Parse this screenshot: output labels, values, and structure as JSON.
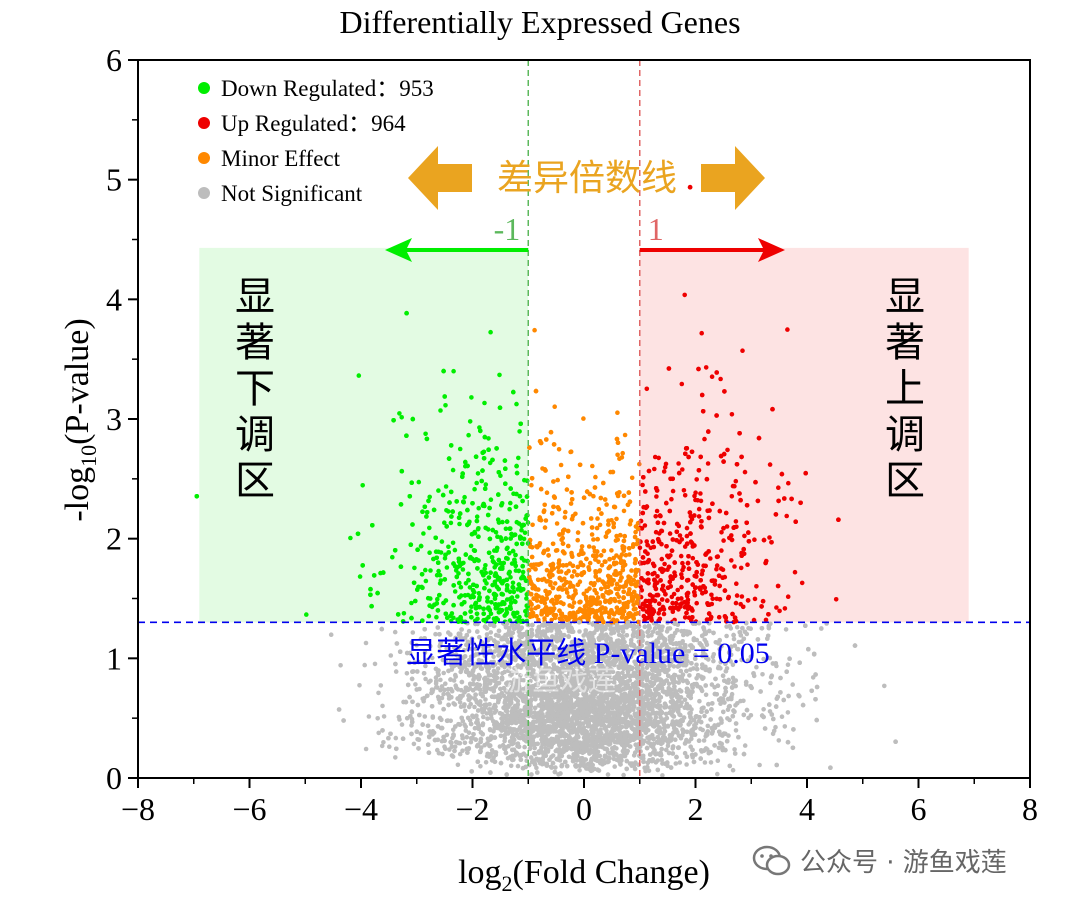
{
  "chart_data": {
    "type": "scatter",
    "title": "Differentially Expressed Genes",
    "xlabel": {
      "pre": "log",
      "sub": "2",
      "post": "(Fold Change)"
    },
    "ylabel": {
      "pre": "-log",
      "sub": "10",
      "post": "(P-value)"
    },
    "xlim": [
      -8,
      8
    ],
    "ylim": [
      0,
      6
    ],
    "xticks": [
      -8,
      -6,
      -4,
      -2,
      0,
      2,
      4,
      6,
      8
    ],
    "yticks": [
      0,
      1,
      2,
      3,
      4,
      5,
      6
    ],
    "grid": false,
    "legend_position": "top-left",
    "fold_change_thresholds": [
      -1,
      1
    ],
    "fold_change_labels": [
      "-1",
      "1"
    ],
    "significance_threshold_y": 1.301,
    "significance_line_label": "显著性水平线 P-value = 0.05",
    "fold_change_line_label": "差异倍数线",
    "region_labels": {
      "down": "显著下调区",
      "up": "显著上调区"
    },
    "series": [
      {
        "name": "Down Regulated：953",
        "color": "#00ee00",
        "count": 953
      },
      {
        "name": "Up Regulated：964",
        "color": "#ee0000",
        "count": 964
      },
      {
        "name": "Minor Effect",
        "color": "#ff8800"
      },
      {
        "name": "Not Significant",
        "color": "#bdbdbd"
      }
    ]
  },
  "watermark": {
    "icon": "wechat-icon",
    "text": "公众号 · 游鱼戏莲",
    "overlay": "游鱼戏莲"
  },
  "colors": {
    "down_region": "#e3fbe3",
    "up_region": "#fde3e3",
    "threshold_line": "#0000ee",
    "arrow_orange": "#eaa420",
    "down_line": "#5cb85c",
    "up_line": "#e06666"
  }
}
